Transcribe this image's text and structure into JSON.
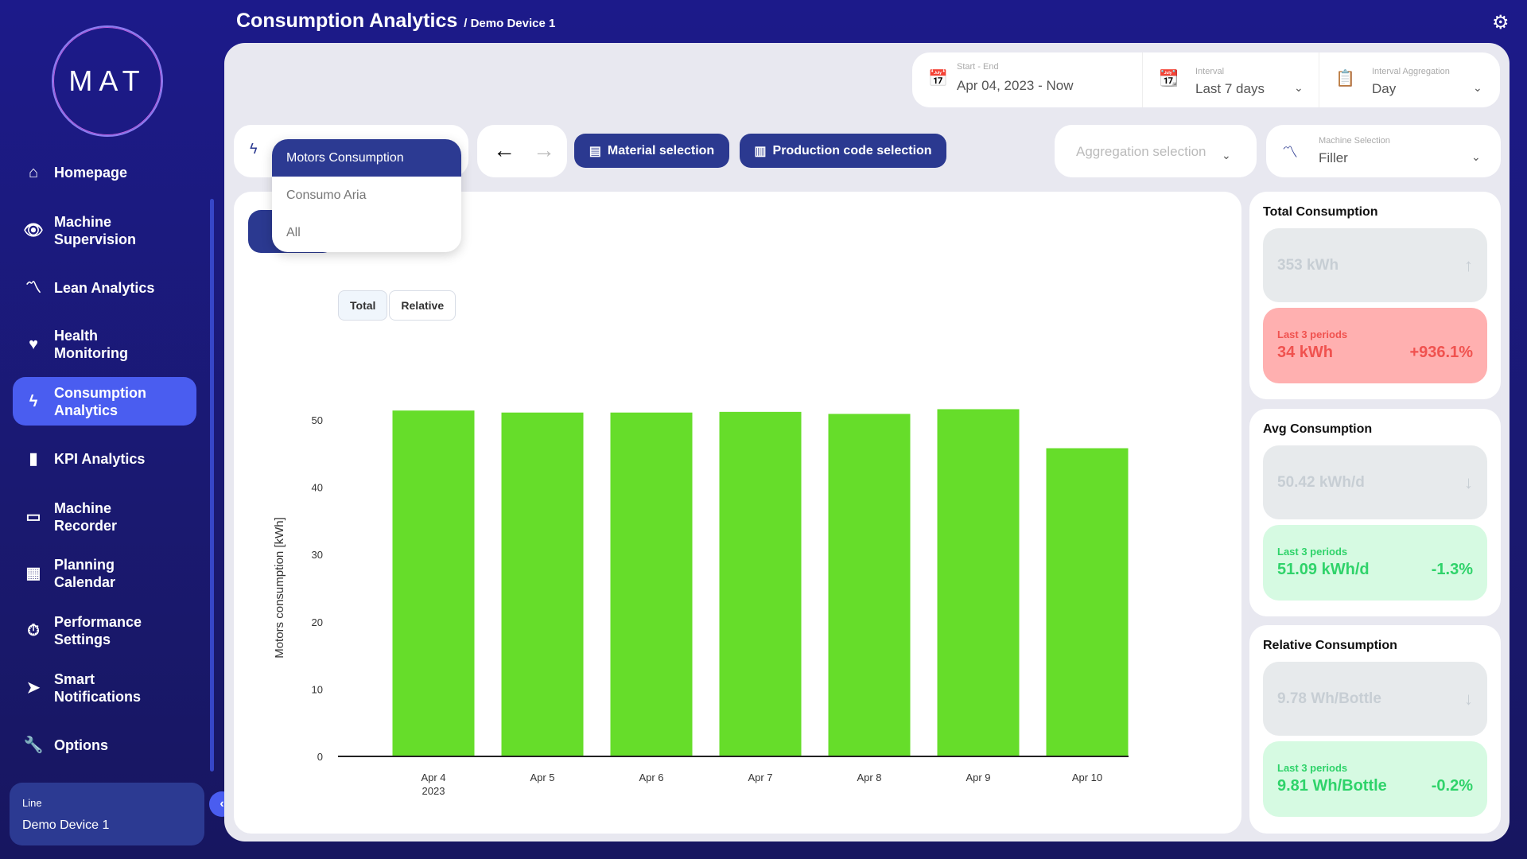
{
  "app": {
    "logo": "MAT",
    "title": "Consumption Analytics",
    "breadcrumb": "/ Demo Device 1"
  },
  "sidebar": {
    "items": [
      {
        "label": "Homepage",
        "icon": "home-icon"
      },
      {
        "label": "Machine Supervision",
        "icon": "eye-icon"
      },
      {
        "label": "Lean Analytics",
        "icon": "trend-icon"
      },
      {
        "label": "Health Monitoring",
        "icon": "heart-icon"
      },
      {
        "label": "Consumption Analytics",
        "icon": "bolt-icon",
        "active": true
      },
      {
        "label": "KPI Analytics",
        "icon": "bar-chart-icon"
      },
      {
        "label": "Machine Recorder",
        "icon": "recorder-icon"
      },
      {
        "label": "Planning Calendar",
        "icon": "calendar-icon"
      },
      {
        "label": "Performance Settings",
        "icon": "stopwatch-icon"
      },
      {
        "label": "Smart Notifications",
        "icon": "send-icon"
      },
      {
        "label": "Options",
        "icon": "wrench-icon"
      }
    ],
    "line_label": "Line",
    "line_value": "Demo Device 1"
  },
  "filters": {
    "start_end_label": "Start - End",
    "start_end_value": "Apr 04, 2023 - Now",
    "interval_label": "Interval",
    "interval_value": "Last 7 days",
    "aggregation_label": "Interval Aggregation",
    "aggregation_value": "Day",
    "aggregation_selection_placeholder": "Aggregation selection",
    "machine_label": "Machine Selection",
    "machine_value": "Filler",
    "material_button": "Material selection",
    "production_button": "Production code selection"
  },
  "consumption_dropdown": {
    "options": [
      "Motors Consumption",
      "Consumo Aria",
      "All"
    ],
    "selected": "Motors Consumption"
  },
  "chart_toggle": {
    "options": [
      "Total",
      "Relative"
    ],
    "selected": "Total"
  },
  "chart_data": {
    "type": "bar",
    "categories": [
      "Apr 4",
      "Apr 5",
      "Apr 6",
      "Apr 7",
      "Apr 8",
      "Apr 9",
      "Apr 10"
    ],
    "first_category_sublabel": "2023",
    "values": [
      51.4,
      51.1,
      51.1,
      51.2,
      50.9,
      51.6,
      45.8
    ],
    "ylabel": "Motors consumption [kWh]",
    "ylim": [
      0,
      50
    ],
    "yticks": [
      0,
      10,
      20,
      30,
      40,
      50
    ],
    "color": "#66dd2a",
    "grid": false
  },
  "stats": [
    {
      "title": "Total Consumption",
      "main": "353 kWh",
      "arrow": "up",
      "period_label": "Last 3 periods",
      "period_value": "34 kWh",
      "change": "+936.1%",
      "status": "red"
    },
    {
      "title": "Avg Consumption",
      "main": "50.42 kWh/d",
      "arrow": "down",
      "period_label": "Last 3 periods",
      "period_value": "51.09 kWh/d",
      "change": "-1.3%",
      "status": "green"
    },
    {
      "title": "Relative Consumption",
      "main": "9.78 Wh/Bottle",
      "arrow": "down",
      "period_label": "Last 3 periods",
      "period_value": "9.81 Wh/Bottle",
      "change": "-0.2%",
      "status": "green"
    }
  ]
}
